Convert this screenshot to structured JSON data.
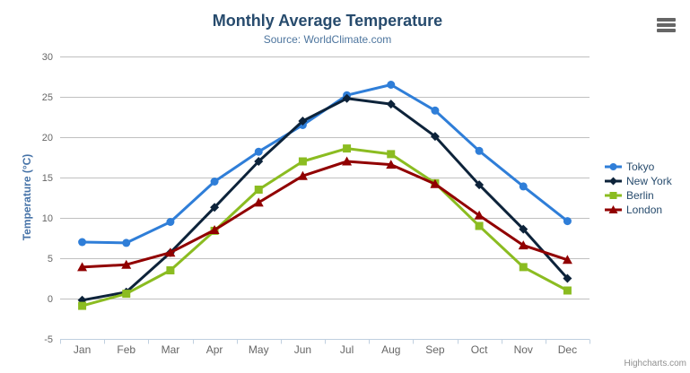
{
  "header": {
    "title": "Monthly Average Temperature",
    "subtitle": "Source: WorldClimate.com"
  },
  "icons": {
    "menu": "hamburger-icon"
  },
  "credits": "Highcharts.com",
  "chart_data": {
    "type": "line",
    "title": "Monthly Average Temperature",
    "subtitle": "Source: WorldClimate.com",
    "xlabel": "",
    "ylabel": "Temperature (°C)",
    "categories": [
      "Jan",
      "Feb",
      "Mar",
      "Apr",
      "May",
      "Jun",
      "Jul",
      "Aug",
      "Sep",
      "Oct",
      "Nov",
      "Dec"
    ],
    "series": [
      {
        "name": "Tokyo",
        "color": "#2f7ed8",
        "marker": "circle",
        "values": [
          7.0,
          6.9,
          9.5,
          14.5,
          18.2,
          21.5,
          25.2,
          26.5,
          23.3,
          18.3,
          13.9,
          9.6
        ]
      },
      {
        "name": "New York",
        "color": "#0d233a",
        "marker": "diamond",
        "values": [
          -0.2,
          0.8,
          5.7,
          11.3,
          17.0,
          22.0,
          24.8,
          24.1,
          20.1,
          14.1,
          8.6,
          2.5
        ]
      },
      {
        "name": "Berlin",
        "color": "#8bbc21",
        "marker": "square",
        "values": [
          -0.9,
          0.6,
          3.5,
          8.4,
          13.5,
          17.0,
          18.6,
          17.9,
          14.3,
          9.0,
          3.9,
          1.0
        ]
      },
      {
        "name": "London",
        "color": "#910000",
        "marker": "triangle",
        "values": [
          3.9,
          4.2,
          5.7,
          8.5,
          11.9,
          15.2,
          17.0,
          16.6,
          14.2,
          10.3,
          6.6,
          4.8
        ]
      }
    ],
    "ylim": [
      -5,
      30
    ],
    "yticks": [
      30,
      25,
      20,
      15,
      10,
      5,
      0,
      -5
    ],
    "grid": true,
    "grid_color": "#c0c0c0",
    "axis_line_color": "#c0d0e0",
    "legend_position": "right"
  }
}
